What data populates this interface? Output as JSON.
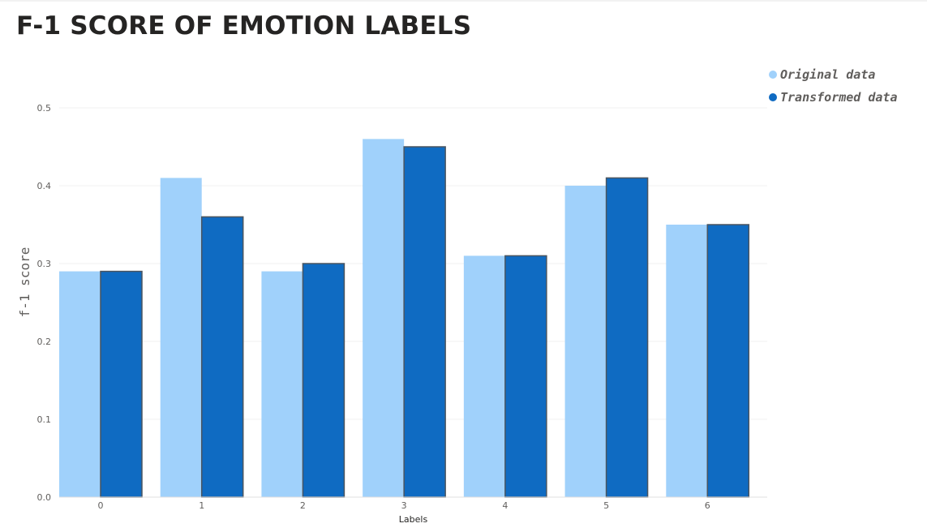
{
  "title": "F-1 SCORE OF EMOTION LABELS",
  "chart_data": {
    "type": "bar",
    "title": "F-1 SCORE OF EMOTION LABELS",
    "xlabel": "Labels",
    "ylabel": "f-1 score",
    "categories": [
      "0",
      "1",
      "2",
      "3",
      "4",
      "5",
      "6"
    ],
    "series": [
      {
        "name": "Original data",
        "color": "#a0d1fb",
        "values": [
          0.29,
          0.41,
          0.29,
          0.46,
          0.31,
          0.4,
          0.35
        ]
      },
      {
        "name": "Transformed data",
        "color": "#0f6bc2",
        "values": [
          0.29,
          0.36,
          0.3,
          0.45,
          0.31,
          0.41,
          0.35
        ]
      }
    ],
    "ylim": [
      0,
      0.5
    ],
    "yticks": [
      "0.0",
      "0.1",
      "0.2",
      "0.3",
      "0.4",
      "0.5"
    ],
    "grid": true,
    "legend_position": "top-right"
  }
}
